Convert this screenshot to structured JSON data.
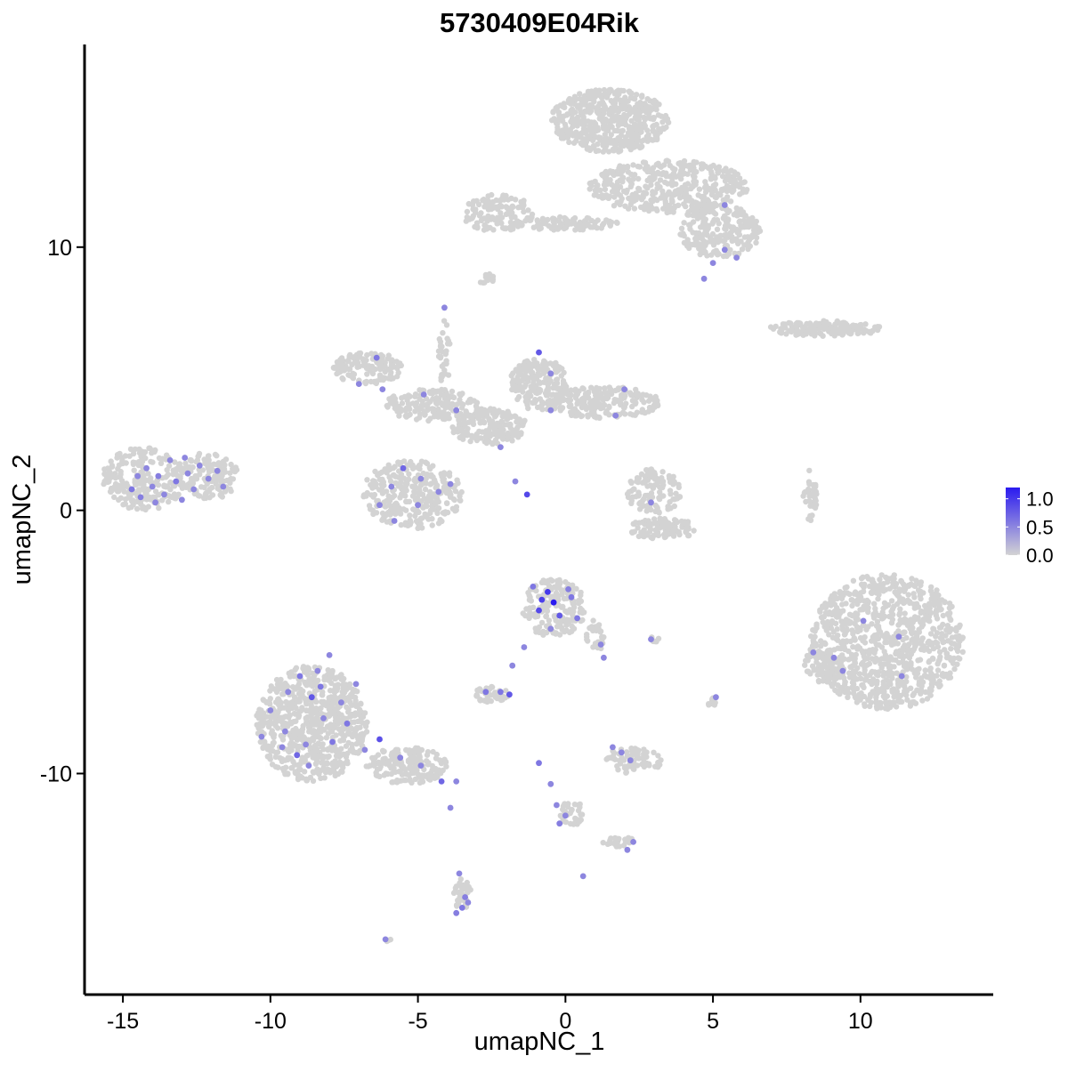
{
  "chart_data": {
    "type": "scatter",
    "title": "5730409E04Rik",
    "xlabel": "umapNC_1",
    "ylabel": "umapNC_2",
    "xlim": [
      -16.3,
      14.5
    ],
    "ylim": [
      -18.4,
      17.7
    ],
    "x_ticks": [
      -15,
      -10,
      -5,
      0,
      5,
      10
    ],
    "x_tick_labels": [
      "-15",
      "-10",
      "-5",
      "0",
      "5",
      "10"
    ],
    "y_ticks": [
      -10,
      0,
      10
    ],
    "y_tick_labels": [
      "-10",
      "0",
      "10"
    ],
    "grid": false,
    "legend": {
      "placement": "right",
      "type": "colorbar",
      "ticks": [
        0.0,
        0.5,
        1.0
      ],
      "tick_labels": [
        "0.0",
        "0.5",
        "1.0"
      ],
      "range": [
        0,
        1.2
      ],
      "low_color": "#d3d3d3",
      "high_color": "#2a1af0"
    },
    "point_color_low": "#d3d3d3",
    "point_color_high": "#2a1af0",
    "background_clusters": [
      {
        "cx": 1.5,
        "cy": 14.8,
        "rx": 2.0,
        "ry": 1.2,
        "n": 520,
        "seed": 11
      },
      {
        "cx": 3.5,
        "cy": 12.3,
        "rx": 2.7,
        "ry": 1.0,
        "n": 420,
        "seed": 12
      },
      {
        "cx": 5.2,
        "cy": 10.6,
        "rx": 1.4,
        "ry": 1.0,
        "n": 220,
        "seed": 13
      },
      {
        "cx": -2.3,
        "cy": 11.3,
        "rx": 1.2,
        "ry": 0.7,
        "n": 120,
        "seed": 14
      },
      {
        "cx": 0.0,
        "cy": 10.9,
        "rx": 1.8,
        "ry": 0.25,
        "n": 90,
        "seed": 15
      },
      {
        "cx": -2.7,
        "cy": 8.8,
        "rx": 0.3,
        "ry": 0.2,
        "n": 12,
        "seed": 16
      },
      {
        "cx": 8.8,
        "cy": 6.9,
        "rx": 1.9,
        "ry": 0.3,
        "n": 160,
        "seed": 17
      },
      {
        "cx": -14.3,
        "cy": 1.2,
        "rx": 1.4,
        "ry": 1.2,
        "n": 230,
        "seed": 18
      },
      {
        "cx": -12.1,
        "cy": 1.3,
        "rx": 1.0,
        "ry": 0.9,
        "n": 130,
        "seed": 19
      },
      {
        "cx": -5.2,
        "cy": 0.6,
        "rx": 1.7,
        "ry": 1.3,
        "n": 300,
        "seed": 20
      },
      {
        "cx": -6.7,
        "cy": 5.4,
        "rx": 1.2,
        "ry": 0.6,
        "n": 140,
        "seed": 21
      },
      {
        "cx": -4.5,
        "cy": 4.0,
        "rx": 1.6,
        "ry": 0.6,
        "n": 160,
        "seed": 22
      },
      {
        "cx": -2.6,
        "cy": 3.2,
        "rx": 1.3,
        "ry": 0.7,
        "n": 180,
        "seed": 23
      },
      {
        "cx": -0.9,
        "cy": 4.8,
        "rx": 1.0,
        "ry": 1.0,
        "n": 200,
        "seed": 24
      },
      {
        "cx": 1.3,
        "cy": 4.1,
        "rx": 1.9,
        "ry": 0.6,
        "n": 220,
        "seed": 25
      },
      {
        "cx": -4.1,
        "cy": 6.0,
        "rx": 0.2,
        "ry": 1.3,
        "n": 30,
        "seed": 26
      },
      {
        "cx": 3.0,
        "cy": 0.7,
        "rx": 0.9,
        "ry": 0.9,
        "n": 110,
        "seed": 27
      },
      {
        "cx": 3.3,
        "cy": -0.7,
        "rx": 1.2,
        "ry": 0.4,
        "n": 110,
        "seed": 28
      },
      {
        "cx": 8.3,
        "cy": 0.6,
        "rx": 0.25,
        "ry": 1.0,
        "n": 35,
        "seed": 29
      },
      {
        "cx": 10.9,
        "cy": -5.0,
        "rx": 2.6,
        "ry": 2.6,
        "n": 900,
        "seed": 30
      },
      {
        "cx": 8.7,
        "cy": -5.8,
        "rx": 0.6,
        "ry": 0.8,
        "n": 60,
        "seed": 31
      },
      {
        "cx": -8.6,
        "cy": -8.1,
        "rx": 1.9,
        "ry": 2.2,
        "n": 700,
        "seed": 32
      },
      {
        "cx": -5.4,
        "cy": -9.7,
        "rx": 1.4,
        "ry": 0.7,
        "n": 180,
        "seed": 33
      },
      {
        "cx": -3.5,
        "cy": -14.6,
        "rx": 0.3,
        "ry": 0.6,
        "n": 40,
        "seed": 34
      },
      {
        "cx": -0.4,
        "cy": -3.7,
        "rx": 1.1,
        "ry": 1.1,
        "n": 180,
        "seed": 35
      },
      {
        "cx": 1.0,
        "cy": -4.8,
        "rx": 0.3,
        "ry": 0.7,
        "n": 30,
        "seed": 36
      },
      {
        "cx": -2.5,
        "cy": -7.0,
        "rx": 0.6,
        "ry": 0.3,
        "n": 40,
        "seed": 37
      },
      {
        "cx": 2.3,
        "cy": -9.5,
        "rx": 1.0,
        "ry": 0.5,
        "n": 70,
        "seed": 38
      },
      {
        "cx": 0.2,
        "cy": -11.5,
        "rx": 0.4,
        "ry": 0.5,
        "n": 35,
        "seed": 39
      },
      {
        "cx": 1.8,
        "cy": -12.6,
        "rx": 0.6,
        "ry": 0.2,
        "n": 25,
        "seed": 40
      },
      {
        "cx": 5.0,
        "cy": -7.3,
        "rx": 0.2,
        "ry": 0.2,
        "n": 10,
        "seed": 41
      },
      {
        "cx": 3.0,
        "cy": -4.9,
        "rx": 0.2,
        "ry": 0.1,
        "n": 6,
        "seed": 42
      },
      {
        "cx": -6.0,
        "cy": -16.3,
        "rx": 0.1,
        "ry": 0.1,
        "n": 3,
        "seed": 43
      }
    ],
    "expressing_points": [
      {
        "x": -14.7,
        "y": 0.8,
        "v": 0.6
      },
      {
        "x": -14.5,
        "y": 1.3,
        "v": 0.5
      },
      {
        "x": -14.2,
        "y": 1.6,
        "v": 0.5
      },
      {
        "x": -14.0,
        "y": 0.9,
        "v": 0.5
      },
      {
        "x": -13.8,
        "y": 1.3,
        "v": 0.55
      },
      {
        "x": -13.6,
        "y": 0.6,
        "v": 0.5
      },
      {
        "x": -13.4,
        "y": 1.9,
        "v": 0.5
      },
      {
        "x": -13.2,
        "y": 1.1,
        "v": 0.6
      },
      {
        "x": -13.0,
        "y": 0.4,
        "v": 0.5
      },
      {
        "x": -12.8,
        "y": 1.4,
        "v": 0.5
      },
      {
        "x": -12.6,
        "y": 0.8,
        "v": 0.5
      },
      {
        "x": -12.4,
        "y": 1.7,
        "v": 0.5
      },
      {
        "x": -12.1,
        "y": 1.2,
        "v": 0.5
      },
      {
        "x": -11.8,
        "y": 1.5,
        "v": 0.5
      },
      {
        "x": -13.9,
        "y": 0.3,
        "v": 0.5
      },
      {
        "x": -14.4,
        "y": 0.5,
        "v": 0.55
      },
      {
        "x": -12.9,
        "y": 2.0,
        "v": 0.5
      },
      {
        "x": -11.6,
        "y": 0.9,
        "v": 0.5
      },
      {
        "x": -6.4,
        "y": 5.8,
        "v": 0.6
      },
      {
        "x": -7.0,
        "y": 4.8,
        "v": 0.5
      },
      {
        "x": -6.2,
        "y": 4.6,
        "v": 0.5
      },
      {
        "x": -4.8,
        "y": 4.4,
        "v": 0.5
      },
      {
        "x": -4.1,
        "y": 7.7,
        "v": 0.5
      },
      {
        "x": -3.7,
        "y": 3.8,
        "v": 0.5
      },
      {
        "x": -5.5,
        "y": 1.6,
        "v": 0.7
      },
      {
        "x": -5.9,
        "y": 0.9,
        "v": 0.5
      },
      {
        "x": -5.0,
        "y": 0.2,
        "v": 0.5
      },
      {
        "x": -4.3,
        "y": 0.7,
        "v": 0.5
      },
      {
        "x": -5.8,
        "y": -0.4,
        "v": 0.5
      },
      {
        "x": -6.3,
        "y": 0.2,
        "v": 0.5
      },
      {
        "x": -4.9,
        "y": 1.2,
        "v": 0.5
      },
      {
        "x": -3.9,
        "y": 1.0,
        "v": 0.5
      },
      {
        "x": -1.3,
        "y": 0.6,
        "v": 0.9
      },
      {
        "x": -2.2,
        "y": 2.4,
        "v": 0.5
      },
      {
        "x": -1.7,
        "y": 1.1,
        "v": 0.5
      },
      {
        "x": -0.9,
        "y": 6.0,
        "v": 0.8
      },
      {
        "x": -0.5,
        "y": 5.2,
        "v": 0.5
      },
      {
        "x": 2.0,
        "y": 4.6,
        "v": 0.5
      },
      {
        "x": 1.7,
        "y": 3.6,
        "v": 0.5
      },
      {
        "x": -0.5,
        "y": 3.8,
        "v": 0.5
      },
      {
        "x": 5.4,
        "y": 11.6,
        "v": 0.5
      },
      {
        "x": 5.4,
        "y": 9.9,
        "v": 0.5
      },
      {
        "x": 5.0,
        "y": 9.4,
        "v": 0.5
      },
      {
        "x": 4.7,
        "y": 8.8,
        "v": 0.5
      },
      {
        "x": 5.8,
        "y": 9.6,
        "v": 0.5
      },
      {
        "x": 2.9,
        "y": 0.3,
        "v": 0.5
      },
      {
        "x": -0.6,
        "y": -3.1,
        "v": 1.0
      },
      {
        "x": -0.4,
        "y": -3.5,
        "v": 1.2
      },
      {
        "x": -0.9,
        "y": -3.8,
        "v": 0.9
      },
      {
        "x": -0.2,
        "y": -4.0,
        "v": 0.8
      },
      {
        "x": -1.1,
        "y": -2.9,
        "v": 0.6
      },
      {
        "x": 0.2,
        "y": -3.3,
        "v": 0.6
      },
      {
        "x": -0.5,
        "y": -4.5,
        "v": 0.5
      },
      {
        "x": 0.4,
        "y": -4.1,
        "v": 0.6
      },
      {
        "x": -0.8,
        "y": -3.4,
        "v": 0.95
      },
      {
        "x": 0.1,
        "y": -3.0,
        "v": 0.55
      },
      {
        "x": 1.3,
        "y": -5.6,
        "v": 0.5
      },
      {
        "x": 1.2,
        "y": -5.1,
        "v": 0.5
      },
      {
        "x": -2.7,
        "y": -6.9,
        "v": 0.6
      },
      {
        "x": -2.2,
        "y": -6.9,
        "v": 0.6
      },
      {
        "x": -1.8,
        "y": -5.9,
        "v": 0.5
      },
      {
        "x": -1.4,
        "y": -5.2,
        "v": 0.5
      },
      {
        "x": -1.9,
        "y": -7.0,
        "v": 0.8
      },
      {
        "x": -9.0,
        "y": -6.3,
        "v": 0.6
      },
      {
        "x": -8.6,
        "y": -7.1,
        "v": 0.8
      },
      {
        "x": -8.2,
        "y": -7.9,
        "v": 0.5
      },
      {
        "x": -9.5,
        "y": -8.4,
        "v": 0.5
      },
      {
        "x": -7.9,
        "y": -8.8,
        "v": 0.6
      },
      {
        "x": -9.1,
        "y": -9.3,
        "v": 0.7
      },
      {
        "x": -8.4,
        "y": -6.1,
        "v": 0.5
      },
      {
        "x": -7.6,
        "y": -7.3,
        "v": 0.5
      },
      {
        "x": -10.0,
        "y": -7.6,
        "v": 0.5
      },
      {
        "x": -8.8,
        "y": -8.9,
        "v": 0.5
      },
      {
        "x": -7.4,
        "y": -8.1,
        "v": 0.6
      },
      {
        "x": -8.0,
        "y": -5.5,
        "v": 0.5
      },
      {
        "x": -9.4,
        "y": -6.9,
        "v": 0.5
      },
      {
        "x": -7.1,
        "y": -6.6,
        "v": 0.5
      },
      {
        "x": -8.7,
        "y": -9.7,
        "v": 0.5
      },
      {
        "x": -6.3,
        "y": -8.7,
        "v": 0.85
      },
      {
        "x": -6.8,
        "y": -9.1,
        "v": 0.5
      },
      {
        "x": -5.6,
        "y": -9.4,
        "v": 0.5
      },
      {
        "x": -4.9,
        "y": -9.7,
        "v": 0.5
      },
      {
        "x": -4.2,
        "y": -10.3,
        "v": 0.7
      },
      {
        "x": -3.7,
        "y": -10.3,
        "v": 0.5
      },
      {
        "x": -9.6,
        "y": -9.0,
        "v": 0.5
      },
      {
        "x": -10.3,
        "y": -8.6,
        "v": 0.5
      },
      {
        "x": -8.3,
        "y": -6.7,
        "v": 0.6
      },
      {
        "x": -3.9,
        "y": -11.3,
        "v": 0.5
      },
      {
        "x": -3.6,
        "y": -13.8,
        "v": 0.5
      },
      {
        "x": -3.4,
        "y": -14.7,
        "v": 0.55
      },
      {
        "x": -3.5,
        "y": -15.1,
        "v": 0.6
      },
      {
        "x": -3.7,
        "y": -15.3,
        "v": 0.55
      },
      {
        "x": -3.3,
        "y": -14.9,
        "v": 0.5
      },
      {
        "x": -0.9,
        "y": -9.6,
        "v": 0.6
      },
      {
        "x": -0.5,
        "y": -10.4,
        "v": 0.5
      },
      {
        "x": -0.3,
        "y": -11.2,
        "v": 0.5
      },
      {
        "x": -0.2,
        "y": -11.9,
        "v": 0.55
      },
      {
        "x": 0.0,
        "y": -11.6,
        "v": 0.5
      },
      {
        "x": 0.6,
        "y": -13.9,
        "v": 0.5
      },
      {
        "x": 2.3,
        "y": -12.6,
        "v": 0.5
      },
      {
        "x": 2.1,
        "y": -12.9,
        "v": 0.5
      },
      {
        "x": 1.6,
        "y": -9.0,
        "v": 0.5
      },
      {
        "x": 2.2,
        "y": -9.5,
        "v": 0.5
      },
      {
        "x": 1.9,
        "y": -9.2,
        "v": 0.5
      },
      {
        "x": 5.1,
        "y": -7.1,
        "v": 0.5
      },
      {
        "x": 2.9,
        "y": -4.9,
        "v": 0.5
      },
      {
        "x": 9.1,
        "y": -5.6,
        "v": 0.5
      },
      {
        "x": 10.1,
        "y": -4.2,
        "v": 0.5
      },
      {
        "x": 11.3,
        "y": -4.8,
        "v": 0.5
      },
      {
        "x": 9.4,
        "y": -6.1,
        "v": 0.5
      },
      {
        "x": 11.4,
        "y": -6.3,
        "v": 0.5
      },
      {
        "x": 8.4,
        "y": -5.4,
        "v": 0.5
      },
      {
        "x": -6.1,
        "y": -16.3,
        "v": 0.5
      }
    ]
  }
}
